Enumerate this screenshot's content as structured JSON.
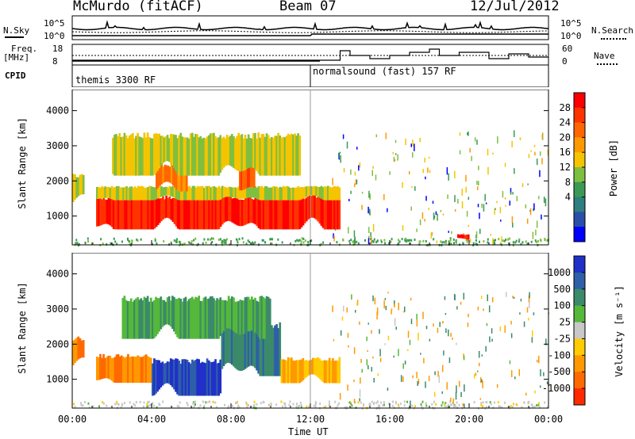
{
  "header": {
    "station": "McMurdo (fitACF)",
    "beam": "Beam 07",
    "date": "12/Jul/2012"
  },
  "top_panels": {
    "nsky_label": "N.Sky",
    "nsky_ticks": [
      "10^5",
      "10^0"
    ],
    "nsearch_label": "N.Search",
    "nsearch_ticks": [
      "10^5",
      "10^0"
    ],
    "freq_label": "Freq.",
    "freq_unit": "[MHz]",
    "freq_ticks": [
      "18",
      "8"
    ],
    "nave_label": "Nave",
    "nave_ticks": [
      "60",
      "0"
    ],
    "cpid_label": "CPID",
    "cpid_segments": [
      "themis 3300 RF",
      "normalsound (fast) 157 RF"
    ]
  },
  "time_axis": {
    "ticks": [
      "00:00",
      "04:00",
      "08:00",
      "12:00",
      "16:00",
      "20:00",
      "00:00"
    ],
    "label": "Time UT"
  },
  "chart_data": [
    {
      "type": "heatmap",
      "panel": "power",
      "ylabel": "Slant Range [km]",
      "yticks": [
        "1000",
        "2000",
        "3000",
        "4000"
      ],
      "ylim": [
        180,
        4600
      ],
      "xlim_hours": [
        0,
        24
      ],
      "colorbar_label": "Power [dB]",
      "colorbar_ticks": [
        "28",
        "24",
        "20",
        "16",
        "12",
        "8",
        "4"
      ],
      "colorbar_colors": [
        "#ff0000",
        "#ff3300",
        "#ff6600",
        "#ff9900",
        "#f5c400",
        "#7fbf3f",
        "#3a9a55",
        "#2e7f80",
        "#2a4fa8",
        "#0000ff"
      ],
      "echo_regions": [
        {
          "t_start": 0.0,
          "t_end": 0.6,
          "r_min": 1300,
          "r_max": 2300,
          "value": 12
        },
        {
          "t_start": 1.2,
          "t_end": 13.5,
          "r_min": 500,
          "r_max": 1700,
          "value": 28
        },
        {
          "t_start": 1.2,
          "t_end": 13.5,
          "r_min": 1400,
          "r_max": 1900,
          "value": 12
        },
        {
          "t_start": 4.2,
          "t_end": 5.8,
          "r_min": 1600,
          "r_max": 2600,
          "value": 20
        },
        {
          "t_start": 8.4,
          "t_end": 9.2,
          "r_min": 1500,
          "r_max": 2800,
          "value": 24
        },
        {
          "t_start": 2.0,
          "t_end": 11.5,
          "r_min": 2000,
          "r_max": 3500,
          "value": 12
        },
        {
          "t_start": 19.4,
          "t_end": 20.0,
          "r_min": 300,
          "r_max": 500,
          "value": 28
        }
      ]
    },
    {
      "type": "heatmap",
      "panel": "velocity",
      "ylabel": "Slant Range [km]",
      "yticks": [
        "1000",
        "2000",
        "3000",
        "4000"
      ],
      "ylim": [
        180,
        4600
      ],
      "xlim_hours": [
        0,
        24
      ],
      "colorbar_label": "Velocity [m s⁻¹]",
      "colorbar_ticks": [
        "1000",
        "500",
        "100",
        "25",
        "-25",
        "-100",
        "-500",
        "-1000"
      ],
      "colorbar_colors": [
        "#2030c8",
        "#2e5fa8",
        "#3b8a6a",
        "#55b83a",
        "#c8c8c8",
        "#ffcc00",
        "#ff9900",
        "#ff6a00",
        "#ff2a00"
      ],
      "echo_regions": [
        {
          "t_start": 0.0,
          "t_end": 0.6,
          "r_min": 1300,
          "r_max": 2300,
          "value": -500
        },
        {
          "t_start": 1.2,
          "t_end": 4.0,
          "r_min": 800,
          "r_max": 1800,
          "value": -500
        },
        {
          "t_start": 4.0,
          "t_end": 7.5,
          "r_min": 400,
          "r_max": 1700,
          "value": 1000
        },
        {
          "t_start": 7.5,
          "t_end": 10.5,
          "r_min": 900,
          "r_max": 2800,
          "value": 500
        },
        {
          "t_start": 10.5,
          "t_end": 13.5,
          "r_min": 800,
          "r_max": 1700,
          "value": -100
        },
        {
          "t_start": 2.5,
          "t_end": 10.0,
          "r_min": 2000,
          "r_max": 3500,
          "value": 100
        }
      ]
    }
  ]
}
